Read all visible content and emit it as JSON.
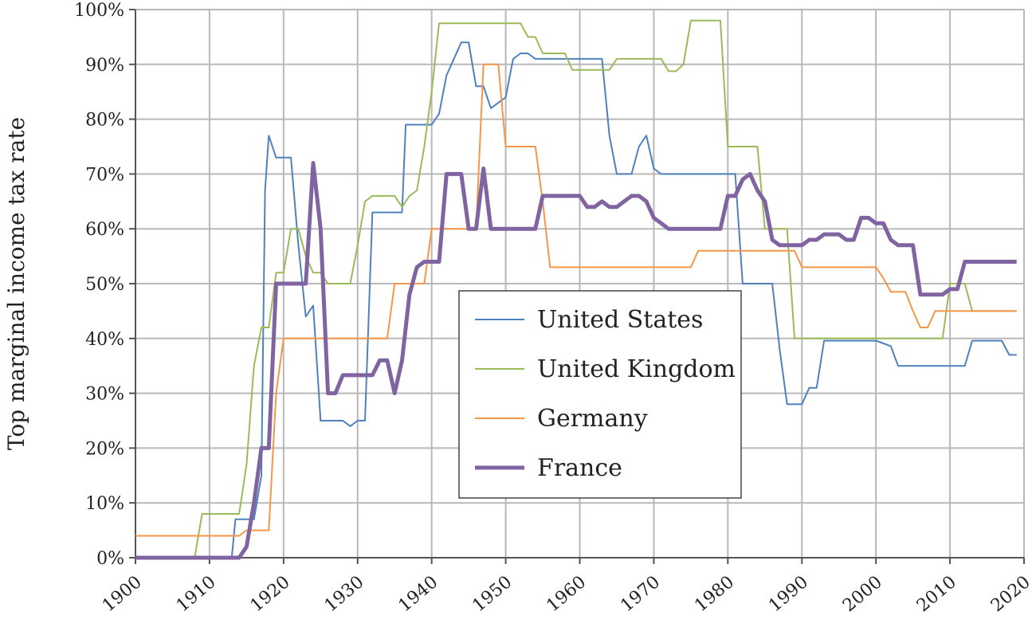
{
  "chart_data": {
    "type": "line",
    "title": "",
    "xlabel": "",
    "ylabel": "Top marginal income tax rate",
    "xlim": [
      1900,
      2020
    ],
    "ylim": [
      0,
      100
    ],
    "x_ticks": [
      1900,
      1910,
      1920,
      1930,
      1940,
      1950,
      1960,
      1970,
      1980,
      1990,
      2000,
      2010,
      2020
    ],
    "x_tick_labels": [
      "1900",
      "1910",
      "1920",
      "1930",
      "1940",
      "1950",
      "1960",
      "1970",
      "1980",
      "1990",
      "2000",
      "2010",
      "2020"
    ],
    "y_ticks": [
      0,
      10,
      20,
      30,
      40,
      50,
      60,
      70,
      80,
      90,
      100
    ],
    "y_tick_labels": [
      "0%",
      "10%",
      "20%",
      "30%",
      "40%",
      "50%",
      "60%",
      "70%",
      "80%",
      "90%",
      "100%"
    ],
    "grid": true,
    "legend_position": "center",
    "series": [
      {
        "name": "United States",
        "color": "#4f81bd",
        "width": 2,
        "points": [
          [
            1900,
            0
          ],
          [
            1913,
            0
          ],
          [
            1913.5,
            7
          ],
          [
            1916,
            7
          ],
          [
            1917,
            15
          ],
          [
            1917.5,
            67
          ],
          [
            1918,
            77
          ],
          [
            1919,
            73
          ],
          [
            1921,
            73
          ],
          [
            1922,
            57
          ],
          [
            1923,
            44
          ],
          [
            1924,
            46
          ],
          [
            1925,
            25
          ],
          [
            1928,
            25
          ],
          [
            1929,
            24
          ],
          [
            1930,
            25
          ],
          [
            1931,
            25
          ],
          [
            1932,
            63
          ],
          [
            1936,
            63
          ],
          [
            1936.5,
            79
          ],
          [
            1940,
            79
          ],
          [
            1941,
            81
          ],
          [
            1942,
            88
          ],
          [
            1944,
            94
          ],
          [
            1945,
            94
          ],
          [
            1946,
            86
          ],
          [
            1947,
            86
          ],
          [
            1948,
            82
          ],
          [
            1950,
            84
          ],
          [
            1951,
            91
          ],
          [
            1952,
            92
          ],
          [
            1953,
            92
          ],
          [
            1954,
            91
          ],
          [
            1963,
            91
          ],
          [
            1964,
            77
          ],
          [
            1965,
            70
          ],
          [
            1967,
            70
          ],
          [
            1968,
            75
          ],
          [
            1969,
            77
          ],
          [
            1970,
            71
          ],
          [
            1971,
            70
          ],
          [
            1981,
            70
          ],
          [
            1982,
            50
          ],
          [
            1986,
            50
          ],
          [
            1987,
            38
          ],
          [
            1988,
            28
          ],
          [
            1990,
            28
          ],
          [
            1991,
            31
          ],
          [
            1992,
            31
          ],
          [
            1993,
            39.6
          ],
          [
            2000,
            39.6
          ],
          [
            2001,
            39.1
          ],
          [
            2002,
            38.6
          ],
          [
            2003,
            35
          ],
          [
            2012,
            35
          ],
          [
            2013,
            39.6
          ],
          [
            2017,
            39.6
          ],
          [
            2018,
            37
          ],
          [
            2019,
            37
          ]
        ]
      },
      {
        "name": "United Kingdom",
        "color": "#9bbb59",
        "width": 2,
        "points": [
          [
            1900,
            0
          ],
          [
            1908,
            0
          ],
          [
            1909,
            8
          ],
          [
            1914,
            8
          ],
          [
            1915,
            17
          ],
          [
            1916,
            35
          ],
          [
            1917,
            42
          ],
          [
            1918,
            42
          ],
          [
            1919,
            52
          ],
          [
            1920,
            52
          ],
          [
            1921,
            60
          ],
          [
            1922,
            60
          ],
          [
            1923,
            55
          ],
          [
            1924,
            52
          ],
          [
            1925,
            52
          ],
          [
            1926,
            50
          ],
          [
            1929,
            50
          ],
          [
            1930,
            57
          ],
          [
            1931,
            65
          ],
          [
            1932,
            66
          ],
          [
            1935,
            66
          ],
          [
            1936,
            64
          ],
          [
            1937,
            66
          ],
          [
            1938,
            67
          ],
          [
            1939,
            75
          ],
          [
            1940,
            85
          ],
          [
            1941,
            97.5
          ],
          [
            1952,
            97.5
          ],
          [
            1953,
            95
          ],
          [
            1954,
            95
          ],
          [
            1955,
            92
          ],
          [
            1958,
            92
          ],
          [
            1959,
            89
          ],
          [
            1964,
            89
          ],
          [
            1965,
            91
          ],
          [
            1971,
            91
          ],
          [
            1972,
            88.75
          ],
          [
            1973,
            88.75
          ],
          [
            1974,
            90
          ],
          [
            1975,
            98
          ],
          [
            1979,
            98
          ],
          [
            1980,
            75
          ],
          [
            1984,
            75
          ],
          [
            1985,
            60
          ],
          [
            1988,
            60
          ],
          [
            1989,
            40
          ],
          [
            2009,
            40
          ],
          [
            2010,
            50
          ],
          [
            2012,
            50
          ],
          [
            2013,
            45
          ],
          [
            2019,
            45
          ]
        ]
      },
      {
        "name": "Germany",
        "color": "#f79646",
        "width": 2,
        "points": [
          [
            1900,
            4
          ],
          [
            1914,
            4
          ],
          [
            1915,
            5
          ],
          [
            1918,
            5
          ],
          [
            1919,
            30
          ],
          [
            1920,
            40
          ],
          [
            1934,
            40
          ],
          [
            1935,
            50
          ],
          [
            1939,
            50
          ],
          [
            1940,
            60
          ],
          [
            1946,
            60
          ],
          [
            1947,
            90
          ],
          [
            1949,
            90
          ],
          [
            1950,
            75
          ],
          [
            1954,
            75
          ],
          [
            1955,
            65
          ],
          [
            1956,
            53
          ],
          [
            1975,
            53
          ],
          [
            1976,
            56
          ],
          [
            1989,
            56
          ],
          [
            1990,
            53
          ],
          [
            2000,
            53
          ],
          [
            2001,
            51
          ],
          [
            2002,
            48.5
          ],
          [
            2004,
            48.5
          ],
          [
            2005,
            45
          ],
          [
            2006,
            42
          ],
          [
            2007,
            42
          ],
          [
            2008,
            45
          ],
          [
            2019,
            45
          ]
        ]
      },
      {
        "name": "France",
        "color": "#8064a2",
        "width": 5,
        "points": [
          [
            1900,
            0
          ],
          [
            1914,
            0
          ],
          [
            1915,
            2
          ],
          [
            1916,
            10
          ],
          [
            1917,
            20
          ],
          [
            1918,
            20
          ],
          [
            1919,
            50
          ],
          [
            1923,
            50
          ],
          [
            1924,
            72
          ],
          [
            1925,
            60
          ],
          [
            1926,
            30
          ],
          [
            1927,
            30
          ],
          [
            1928,
            33.3
          ],
          [
            1932,
            33.3
          ],
          [
            1933,
            36
          ],
          [
            1934,
            36
          ],
          [
            1935,
            30
          ],
          [
            1936,
            36
          ],
          [
            1937,
            48
          ],
          [
            1938,
            53
          ],
          [
            1939,
            54
          ],
          [
            1941,
            54
          ],
          [
            1942,
            70
          ],
          [
            1944,
            70
          ],
          [
            1945,
            60
          ],
          [
            1946,
            60
          ],
          [
            1947,
            71
          ],
          [
            1948,
            60
          ],
          [
            1954,
            60
          ],
          [
            1955,
            66
          ],
          [
            1960,
            66
          ],
          [
            1961,
            64
          ],
          [
            1962,
            64
          ],
          [
            1963,
            65
          ],
          [
            1964,
            64
          ],
          [
            1965,
            64
          ],
          [
            1966,
            65
          ],
          [
            1967,
            66
          ],
          [
            1968,
            66
          ],
          [
            1969,
            65
          ],
          [
            1970,
            62
          ],
          [
            1971,
            61
          ],
          [
            1972,
            60
          ],
          [
            1979,
            60
          ],
          [
            1980,
            66
          ],
          [
            1981,
            66
          ],
          [
            1982,
            69
          ],
          [
            1983,
            70
          ],
          [
            1984,
            67
          ],
          [
            1985,
            65
          ],
          [
            1986,
            58
          ],
          [
            1987,
            57
          ],
          [
            1990,
            57
          ],
          [
            1991,
            58
          ],
          [
            1992,
            58
          ],
          [
            1993,
            59
          ],
          [
            1995,
            59
          ],
          [
            1996,
            58
          ],
          [
            1997,
            58
          ],
          [
            1998,
            62
          ],
          [
            1999,
            62
          ],
          [
            2000,
            61
          ],
          [
            2001,
            61
          ],
          [
            2002,
            58
          ],
          [
            2003,
            57
          ],
          [
            2005,
            57
          ],
          [
            2006,
            48
          ],
          [
            2009,
            48
          ],
          [
            2010,
            49
          ],
          [
            2011,
            49
          ],
          [
            2012,
            54
          ],
          [
            2019,
            54
          ]
        ]
      }
    ]
  }
}
